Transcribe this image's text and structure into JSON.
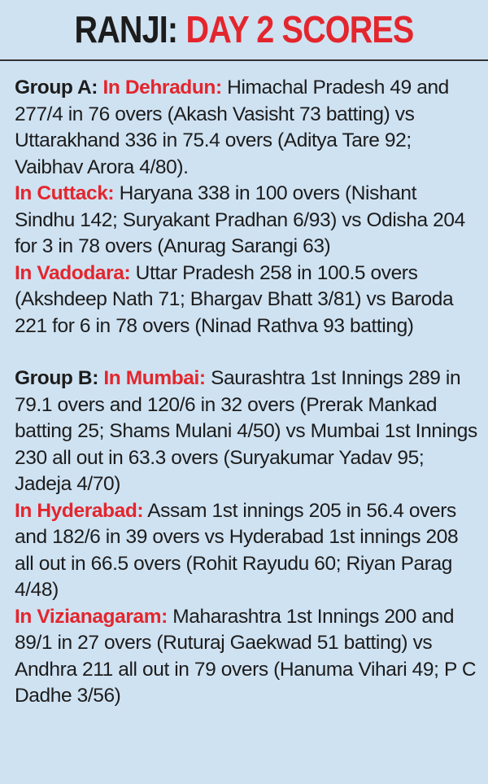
{
  "header": {
    "title_prefix": "RANJI:",
    "title_accent": "DAY 2 SCORES"
  },
  "groups": [
    {
      "label": "Group A:",
      "entries": [
        {
          "venue": "In Dehradun:",
          "text": "Himachal Pradesh 49 and 277/4 in 76 overs (Akash Vasisht 73 batting) vs Uttarakhand 336 in 75.4 overs (Aditya Tare 92; Vaibhav Arora 4/80)."
        },
        {
          "venue": "In Cuttack:",
          "text": "Haryana 338 in 100 overs (Nishant Sindhu 142; Suryakant Pradhan 6/93) vs Odisha 204 for 3 in 78 overs (Anurag Sarangi 63)"
        },
        {
          "venue": "In Vadodara:",
          "text": "Uttar Pradesh 258 in 100.5 overs (Akshdeep Nath 71; Bhargav Bhatt 3/81) vs Baroda 221 for 6 in 78 overs (Ninad Rathva 93 batting)"
        }
      ]
    },
    {
      "label": "Group B:",
      "entries": [
        {
          "venue": "In Mumbai:",
          "text": "Saurashtra 1st Innings 289 in 79.1 overs and 120/6 in 32 overs (Prerak Mankad batting 25; Shams Mulani 4/50) vs Mumbai 1st Innings 230 all out in 63.3 overs (Suryakumar Yadav 95; Jadeja 4/70)"
        },
        {
          "venue": "In Hyderabad:",
          "text": "Assam 1st innings 205 in 56.4 overs and 182/6 in 39 overs vs Hyderabad 1st innings 208 all out in 66.5 overs (Rohit Rayudu 60; Riyan Parag 4/48)"
        },
        {
          "venue": "In Vizianagaram:",
          "text": "Maharashtra 1st Innings 200 and 89/1 in 27 overs (Ruturaj Gaekwad 51 batting) vs Andhra 211 all out in 79 overs (Hanuma Vihari 49; P C Dadhe 3/56)"
        }
      ]
    }
  ]
}
